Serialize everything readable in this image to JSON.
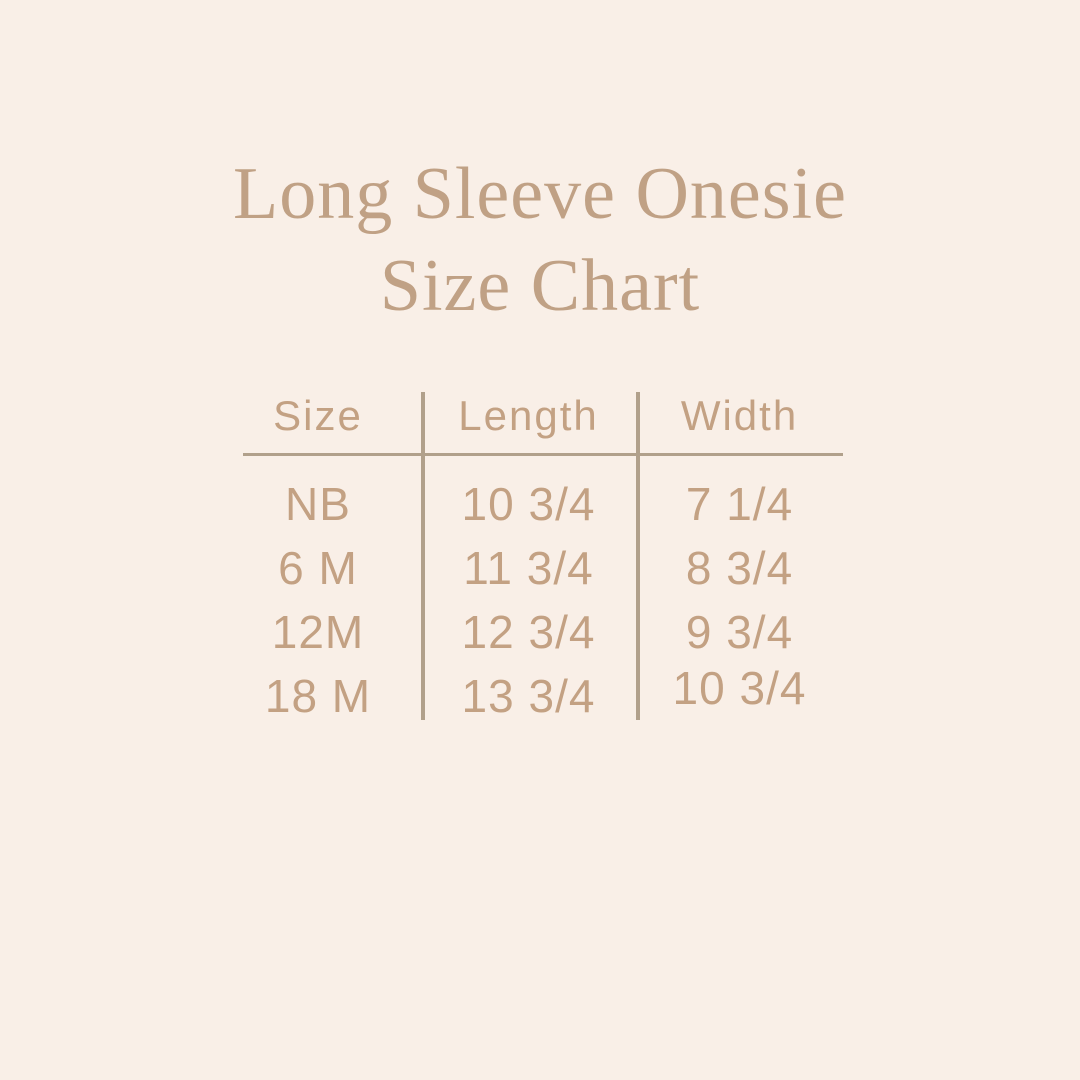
{
  "page": {
    "background_color": "#f9efe7",
    "title_color": "#c0a185",
    "table_text_color": "#c3a183",
    "rule_color": "#b1a08b"
  },
  "title": {
    "line1": "Long Sleeve Onesie",
    "line2": "Size Chart"
  },
  "chart_data": {
    "type": "table",
    "title": "Long Sleeve Onesie Size Chart",
    "columns": [
      "Size",
      "Length",
      "Width"
    ],
    "rows": [
      [
        "NB",
        "10 3/4",
        "7 1/4"
      ],
      [
        "6 M",
        "11 3/4",
        "8 3/4"
      ],
      [
        "12M",
        "12 3/4",
        "9 3/4"
      ],
      [
        "18 M",
        "13 3/4",
        "10 3/4"
      ]
    ]
  }
}
